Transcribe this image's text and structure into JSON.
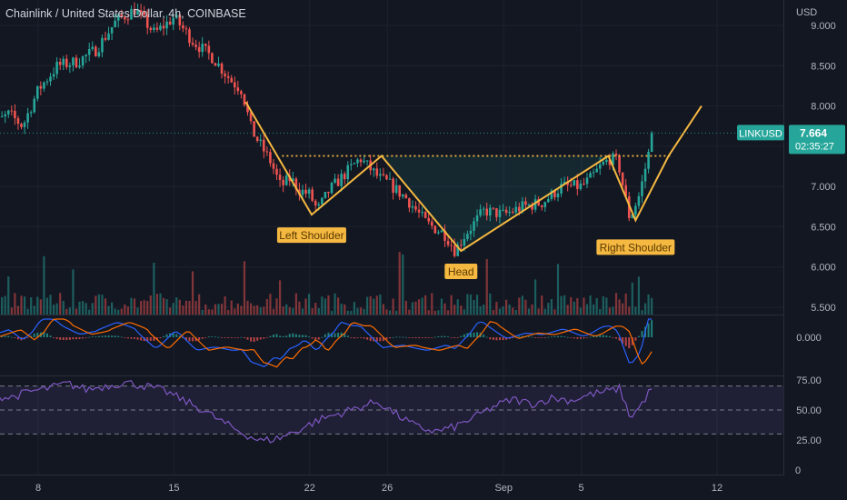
{
  "header": {
    "title": "Chainlink / United States Dollar, 4h, COINBASE",
    "currency": "USD"
  },
  "price_tag": {
    "symbol": "LINKUSD",
    "price": "7.664",
    "countdown": "02:35:27"
  },
  "annotations": {
    "left_shoulder": "Left Shoulder",
    "head": "Head",
    "right_shoulder": "Right Shoulder"
  },
  "colors": {
    "background": "#131722",
    "up": "#26a69a",
    "down": "#ef5350",
    "pattern_line": "#f5b841",
    "macd_line": "#2962ff",
    "signal_line": "#ff6d00",
    "rsi_line": "#7e57c2",
    "price_tag": "#26a69a"
  },
  "chart_data": [
    {
      "type": "candlestick",
      "ylim": [
        5.5,
        9.1
      ],
      "y_ticks": [
        "9.000",
        "8.500",
        "8.000",
        "7.000",
        "6.500",
        "6.000",
        "5.500"
      ],
      "x_ticks": [
        "8",
        "15",
        "22",
        "26",
        "Sep",
        "5",
        "12"
      ],
      "x_tick_days": [
        8,
        15,
        22,
        26,
        32,
        36,
        43
      ],
      "x_range_days": [
        5.3,
        47.5
      ],
      "last_price": 7.664,
      "keypoints_days": [
        5.3,
        6.5,
        7.2,
        8.0,
        9.0,
        10.0,
        11.0,
        12.0,
        13.0,
        14.0,
        15.0,
        16.0,
        17.0,
        18.0,
        18.5,
        19.0,
        20.0,
        20.5,
        21.0,
        21.5,
        22.0,
        22.4,
        23.0,
        24.0,
        24.6,
        25.6,
        26.0,
        27.0,
        28.0,
        29.0,
        29.5,
        30.0,
        31.0,
        32.0,
        33.0,
        34.0,
        35.0,
        36.0,
        36.5,
        37.0,
        37.5,
        37.9,
        38.5,
        39.0,
        39.7
      ],
      "keypoints_close": [
        7.7,
        7.9,
        7.75,
        8.2,
        8.5,
        8.55,
        8.7,
        9.05,
        9.2,
        8.9,
        9.1,
        8.8,
        8.6,
        8.3,
        8.2,
        7.7,
        7.3,
        7.0,
        7.1,
        6.95,
        6.9,
        6.7,
        6.95,
        7.2,
        7.35,
        7.1,
        7.05,
        6.85,
        6.55,
        6.4,
        6.2,
        6.4,
        6.7,
        6.65,
        6.75,
        6.8,
        7.0,
        7.0,
        7.1,
        7.25,
        7.35,
        7.3,
        6.6,
        6.9,
        7.66
      ]
    },
    {
      "type": "bar",
      "name": "volume"
    },
    {
      "type": "line",
      "name": "macd",
      "y_ticks": [
        "0.000"
      ]
    },
    {
      "type": "line",
      "name": "rsi",
      "y_ticks": [
        "75.00",
        "50.00",
        "25.00",
        "0"
      ],
      "ylim": [
        0,
        75
      ],
      "guide_levels": [
        70,
        50,
        30
      ],
      "keypoints_days": [
        5.3,
        6.5,
        7.5,
        8.5,
        9.5,
        10.5,
        11.5,
        12.5,
        13.5,
        14.5,
        15.5,
        16.5,
        17.5,
        18.5,
        19.5,
        20.5,
        21.5,
        22.5,
        23.5,
        24.5,
        25.5,
        26.5,
        27.5,
        28.5,
        29.5,
        30.5,
        31.5,
        32.5,
        33.5,
        34.5,
        35.5,
        36.5,
        37.5,
        38.0,
        38.5,
        39.0,
        39.7
      ],
      "keypoints_values": [
        63,
        60,
        65,
        68,
        72,
        67,
        70,
        73,
        70,
        66,
        58,
        50,
        40,
        31,
        24,
        27,
        34,
        42,
        47,
        52,
        57,
        46,
        36,
        32,
        36,
        44,
        53,
        59,
        55,
        60,
        58,
        63,
        66,
        68,
        44,
        52,
        70
      ]
    }
  ],
  "pattern": {
    "neckline": 7.38,
    "points": [
      {
        "day": 18.7,
        "price": 8.05
      },
      {
        "day": 22.1,
        "price": 6.65
      },
      {
        "day": 25.7,
        "price": 7.38
      },
      {
        "day": 29.8,
        "price": 6.2
      },
      {
        "day": 37.4,
        "price": 7.38
      },
      {
        "day": 38.8,
        "price": 6.58
      },
      {
        "day": 40.5,
        "price": 7.38
      },
      {
        "day": 42.2,
        "price": 8.0
      }
    ]
  }
}
